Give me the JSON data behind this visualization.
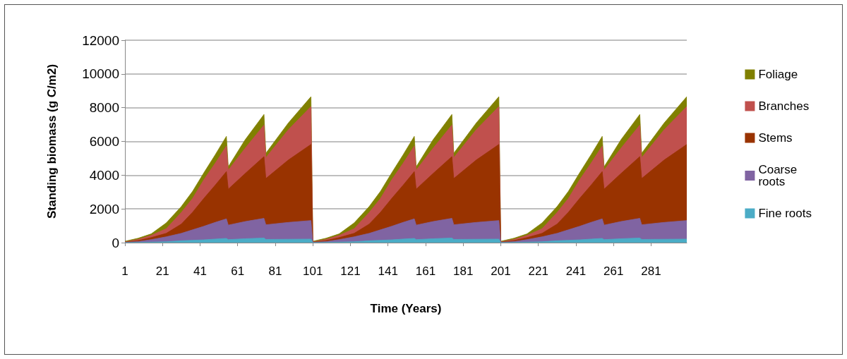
{
  "chart_data": {
    "type": "area",
    "stacked": true,
    "xlabel": "Time (Years)",
    "ylabel": "Standing biomass (g C/m2)",
    "x": [
      1,
      8,
      15,
      23,
      31,
      37,
      43,
      49,
      55,
      56,
      65,
      75,
      76,
      88,
      100,
      101,
      108,
      115,
      123,
      131,
      137,
      143,
      149,
      155,
      156,
      165,
      175,
      176,
      188,
      200,
      201,
      208,
      215,
      223,
      231,
      237,
      243,
      249,
      255,
      256,
      265,
      275,
      276,
      288,
      300
    ],
    "xlim": [
      1,
      300
    ],
    "xticks": [
      1,
      21,
      41,
      61,
      81,
      101,
      121,
      141,
      161,
      181,
      201,
      221,
      241,
      261,
      281
    ],
    "ylim": [
      0,
      12000
    ],
    "yticks": [
      0,
      2000,
      4000,
      6000,
      8000,
      10000,
      12000
    ],
    "grid": "y",
    "legend": "right",
    "series": [
      {
        "name": "Fine roots",
        "color": "#4bacc6",
        "values": [
          5,
          15,
          30,
          50,
          110,
          140,
          165,
          210,
          250,
          180,
          230,
          275,
          190,
          200,
          210,
          5,
          15,
          30,
          50,
          110,
          140,
          165,
          210,
          250,
          180,
          230,
          275,
          190,
          200,
          210,
          5,
          15,
          30,
          50,
          110,
          140,
          165,
          210,
          250,
          180,
          230,
          275,
          190,
          200,
          210
        ]
      },
      {
        "name": "Coarse roots",
        "color": "#8064a2",
        "values": [
          5,
          45,
          150,
          295,
          440,
          620,
          805,
          990,
          1160,
          860,
          1020,
          1165,
          870,
          1000,
          1100,
          5,
          45,
          150,
          295,
          440,
          620,
          805,
          990,
          1160,
          860,
          1020,
          1165,
          870,
          1000,
          1100,
          5,
          45,
          150,
          295,
          440,
          620,
          805,
          990,
          1160,
          860,
          1020,
          1165,
          870,
          1000,
          1100
        ]
      },
      {
        "name": "Stems",
        "color": "#993300",
        "values": [
          15,
          60,
          120,
          205,
          550,
          1040,
          1650,
          2200,
          2800,
          2130,
          2850,
          3660,
          2740,
          3700,
          4510,
          15,
          60,
          120,
          205,
          550,
          1040,
          1650,
          2200,
          2800,
          2130,
          2850,
          3660,
          2740,
          3700,
          4510,
          15,
          60,
          120,
          205,
          550,
          1040,
          1650,
          2200,
          2800,
          2130,
          2850,
          3660,
          2740,
          3700,
          4510
        ]
      },
      {
        "name": "Branches",
        "color": "#c0504d",
        "values": [
          20,
          70,
          130,
          280,
          690,
          820,
          1110,
          1300,
          1520,
          1130,
          1500,
          1870,
          1240,
          1800,
          2250,
          20,
          70,
          130,
          280,
          690,
          820,
          1110,
          1300,
          1520,
          1130,
          1500,
          1870,
          1240,
          1800,
          2250,
          20,
          70,
          130,
          280,
          690,
          820,
          1110,
          1300,
          1520,
          1130,
          1500,
          1870,
          1240,
          1800,
          2250
        ]
      },
      {
        "name": "Foliage",
        "color": "#808000",
        "values": [
          35,
          70,
          90,
          340,
          350,
          420,
          410,
          500,
          570,
          200,
          500,
          630,
          260,
          400,
          580,
          35,
          70,
          90,
          340,
          350,
          420,
          410,
          500,
          570,
          200,
          500,
          630,
          260,
          400,
          580,
          35,
          70,
          90,
          340,
          350,
          420,
          410,
          500,
          570,
          200,
          500,
          630,
          260,
          400,
          580
        ]
      }
    ]
  }
}
